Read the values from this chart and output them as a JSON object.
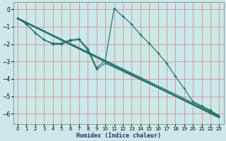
{
  "title": "",
  "xlabel": "Humidex (Indice chaleur)",
  "bg_color": "#cce8e8",
  "grid_color": "#d08080",
  "line_color": "#1a6b60",
  "xlim": [
    -0.5,
    23.5
  ],
  "ylim": [
    -6.6,
    0.4
  ],
  "xticks": [
    0,
    1,
    2,
    3,
    4,
    5,
    6,
    7,
    8,
    9,
    10,
    11,
    12,
    13,
    14,
    15,
    16,
    17,
    18,
    19,
    20,
    21,
    22,
    23
  ],
  "yticks": [
    0,
    -1,
    -2,
    -3,
    -4,
    -5,
    -6
  ],
  "lines": [
    {
      "x": [
        0,
        1,
        2,
        3,
        4,
        5,
        6,
        7,
        8,
        9,
        10,
        11,
        12,
        13,
        14,
        15,
        16,
        17,
        18,
        19,
        20,
        21,
        22,
        23
      ],
      "y": [
        -0.5,
        -0.85,
        -1.35,
        -1.75,
        -1.95,
        -1.95,
        -1.75,
        -1.7,
        -2.25,
        -3.35,
        -2.95,
        0.05,
        -0.4,
        -0.85,
        -1.45,
        -1.95,
        -2.5,
        -3.1,
        -3.85,
        -4.55,
        -5.3,
        -5.55,
        -5.8,
        -6.15
      ],
      "marker": true
    },
    {
      "x": [
        0,
        1,
        2,
        3,
        4,
        5,
        6,
        7,
        8,
        9,
        10,
        23
      ],
      "y": [
        -0.5,
        -0.85,
        -1.35,
        -1.75,
        -2.0,
        -2.0,
        -1.8,
        -1.75,
        -2.35,
        -3.45,
        -3.1,
        -6.15
      ],
      "marker": true
    },
    {
      "x": [
        0,
        23
      ],
      "y": [
        -0.5,
        -6.1
      ],
      "marker": false
    },
    {
      "x": [
        0,
        23
      ],
      "y": [
        -0.5,
        -6.2
      ],
      "marker": false
    },
    {
      "x": [
        0,
        23
      ],
      "y": [
        -0.55,
        -6.25
      ],
      "marker": false
    }
  ],
  "xlabel_color": "#1a3a6e",
  "xlabel_fontsize": 6.0,
  "tick_fontsize": 5.0
}
